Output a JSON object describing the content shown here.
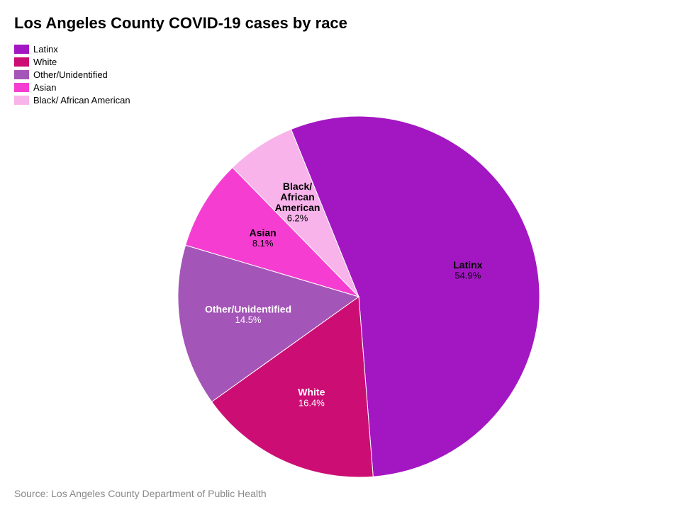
{
  "title": "Los Angeles County COVID-19 cases by race",
  "source": "Source: Los Angeles County Department of Public Health",
  "chart": {
    "type": "pie",
    "background_color": "#ffffff",
    "radius": 255,
    "start_angle_deg": -22,
    "title_fontsize": 22,
    "title_color": "#000000",
    "source_fontsize": 14,
    "source_color": "#888888",
    "label_fontsize": 14,
    "label_fontweight": 700,
    "pct_fontsize": 13,
    "slices": [
      {
        "label": "Latinx",
        "value": 54.9,
        "pct_text": "54.9%",
        "color": "#a317c2",
        "label_color": "#000000",
        "label_lines": [
          "Latinx"
        ]
      },
      {
        "label": "White",
        "value": 16.4,
        "pct_text": "16.4%",
        "color": "#cc0e74",
        "label_color": "#ffffff",
        "label_lines": [
          "White"
        ]
      },
      {
        "label": "Other/Unidentified",
        "value": 14.5,
        "pct_text": "14.5%",
        "color": "#a455b8",
        "label_color": "#ffffff",
        "label_lines": [
          "Other/Unidentified"
        ]
      },
      {
        "label": "Asian",
        "value": 8.1,
        "pct_text": "8.1%",
        "color": "#f53ed1",
        "label_color": "#000000",
        "label_lines": [
          "Asian"
        ]
      },
      {
        "label": "Black/ African American",
        "value": 6.2,
        "pct_text": "6.2%",
        "color": "#f7b3ea",
        "label_color": "#000000",
        "label_lines": [
          "Black/",
          "African",
          "American"
        ]
      }
    ],
    "legend_items": [
      {
        "label": "Latinx",
        "color": "#a317c2"
      },
      {
        "label": "White",
        "color": "#cc0e74"
      },
      {
        "label": "Other/Unidentified",
        "color": "#a455b8"
      },
      {
        "label": "Asian",
        "color": "#f53ed1"
      },
      {
        "label": "Black/ African American",
        "color": "#f7b3ea"
      }
    ]
  }
}
